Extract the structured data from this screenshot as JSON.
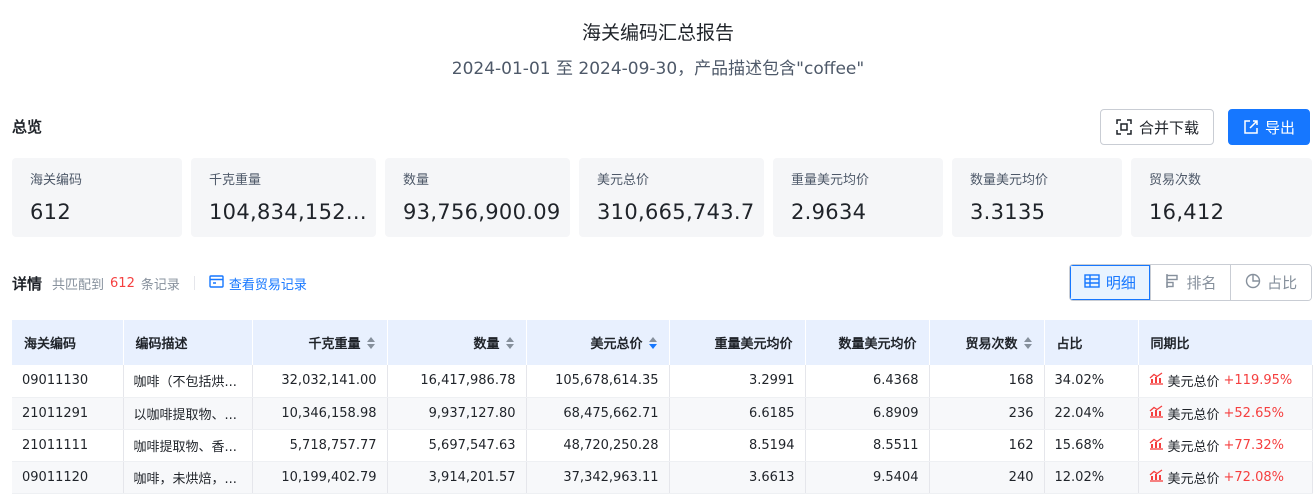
{
  "report": {
    "title": "海关编码汇总报告",
    "subtitle": "2024-01-01 至 2024-09-30，产品描述包含\"coffee\""
  },
  "overview": {
    "label": "总览",
    "merge_download": "合并下载",
    "export": "导出",
    "stats": [
      {
        "label": "海关编码",
        "value": "612"
      },
      {
        "label": "千克重量",
        "value": "104,834,152..."
      },
      {
        "label": "数量",
        "value": "93,756,900.09"
      },
      {
        "label": "美元总价",
        "value": "310,665,743.7"
      },
      {
        "label": "重量美元均价",
        "value": "2.9634"
      },
      {
        "label": "数量美元均价",
        "value": "3.3135"
      },
      {
        "label": "贸易次数",
        "value": "16,412"
      }
    ]
  },
  "details": {
    "label": "详情",
    "match_prefix": "共匹配到",
    "match_count": "612",
    "match_suffix": "条记录",
    "view_records": "查看贸易记录",
    "views": [
      {
        "label": "明细",
        "icon": "table-icon",
        "active": true
      },
      {
        "label": "排名",
        "icon": "ranking-icon",
        "active": false
      },
      {
        "label": "占比",
        "icon": "pie-icon",
        "active": false
      }
    ]
  },
  "table": {
    "columns": [
      {
        "label": "海关编码",
        "align": "left",
        "sortable": false
      },
      {
        "label": "编码描述",
        "align": "left",
        "sortable": false
      },
      {
        "label": "千克重量",
        "align": "right",
        "sortable": true
      },
      {
        "label": "数量",
        "align": "right",
        "sortable": true
      },
      {
        "label": "美元总价",
        "align": "right",
        "sortable": true,
        "sort_active": "desc"
      },
      {
        "label": "重量美元均价",
        "align": "right",
        "sortable": false
      },
      {
        "label": "数量美元均价",
        "align": "right",
        "sortable": false
      },
      {
        "label": "贸易次数",
        "align": "right",
        "sortable": true
      },
      {
        "label": "占比",
        "align": "left",
        "sortable": false
      },
      {
        "label": "同期比",
        "align": "left",
        "sortable": false
      }
    ],
    "rows": [
      {
        "code": "09011130",
        "desc": "咖啡（不包括烘...",
        "weight": "32,032,141.00",
        "qty": "16,417,986.78",
        "usd": "105,678,614.35",
        "w_avg": "3.2991",
        "q_avg": "6.4368",
        "trades": "168",
        "share": "34.02%",
        "yoy_metric": "美元总价",
        "yoy_value": "+119.95%"
      },
      {
        "code": "21011291",
        "desc": "以咖啡提取物、...",
        "weight": "10,346,158.98",
        "qty": "9,937,127.80",
        "usd": "68,475,662.71",
        "w_avg": "6.6185",
        "q_avg": "6.8909",
        "trades": "236",
        "share": "22.04%",
        "yoy_metric": "美元总价",
        "yoy_value": "+52.65%"
      },
      {
        "code": "21011111",
        "desc": "咖啡提取物、香...",
        "weight": "5,718,757.77",
        "qty": "5,697,547.63",
        "usd": "48,720,250.28",
        "w_avg": "8.5194",
        "q_avg": "8.5511",
        "trades": "162",
        "share": "15.68%",
        "yoy_metric": "美元总价",
        "yoy_value": "+77.32%"
      },
      {
        "code": "09011120",
        "desc": "咖啡，未烘焙，...",
        "weight": "10,199,402.79",
        "qty": "3,914,201.57",
        "usd": "37,342,963.11",
        "w_avg": "3.6613",
        "q_avg": "9.5404",
        "trades": "240",
        "share": "12.02%",
        "yoy_metric": "美元总价",
        "yoy_value": "+72.08%"
      }
    ]
  },
  "colors": {
    "accent": "#1677ff",
    "positive": "#f53f3f",
    "header_bg": "#e8f0fe",
    "card_bg": "#f5f6f8"
  }
}
